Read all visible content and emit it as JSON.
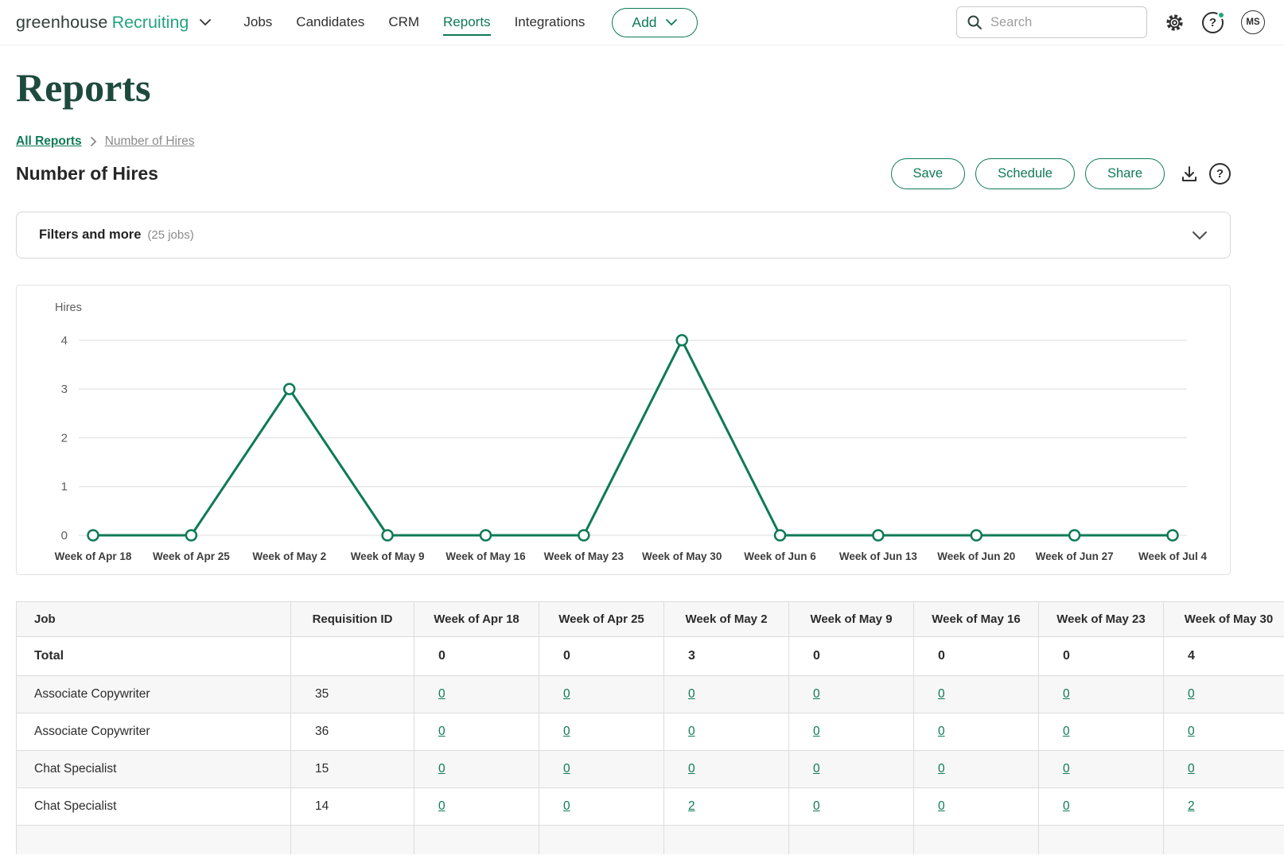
{
  "nav": {
    "logo_primary": "greenhouse",
    "logo_product": "Recruiting",
    "items": [
      {
        "label": "Jobs"
      },
      {
        "label": "Candidates"
      },
      {
        "label": "CRM"
      },
      {
        "label": "Reports"
      },
      {
        "label": "Integrations"
      }
    ],
    "active_item": "Reports",
    "add_button": "Add",
    "search_placeholder": "Search",
    "avatar_initials": "MS"
  },
  "page": {
    "title": "Reports",
    "breadcrumb": [
      {
        "label": "All Reports"
      },
      {
        "label": "Number of Hires"
      }
    ],
    "report_title": "Number of Hires",
    "actions": {
      "save": "Save",
      "schedule": "Schedule",
      "share": "Share"
    }
  },
  "filters": {
    "label": "Filters and more",
    "meta": "(25 jobs)"
  },
  "chart_data": {
    "type": "line",
    "title": "",
    "ylabel": "Hires",
    "xlabel": "",
    "categories": [
      "Week of Apr 18",
      "Week of Apr 25",
      "Week of May 2",
      "Week of May 9",
      "Week of May 16",
      "Week of May 23",
      "Week of May 30",
      "Week of Jun 6",
      "Week of Jun 13",
      "Week of Jun 20",
      "Week of Jun 27",
      "Week of Jul 4"
    ],
    "values": [
      0,
      0,
      3,
      0,
      0,
      0,
      4,
      0,
      0,
      0,
      0,
      0
    ],
    "yticks": [
      0,
      1,
      2,
      3,
      4
    ],
    "ylim": [
      0,
      4
    ],
    "grid": true,
    "legend": "none"
  },
  "table": {
    "columns": [
      "Job",
      "Requisition ID",
      "Week of Apr 18",
      "Week of Apr 25",
      "Week of May 2",
      "Week of May 9",
      "Week of May 16",
      "Week of May 23",
      "Week of May 30"
    ],
    "total_label": "Total",
    "total_values": [
      "0",
      "0",
      "3",
      "0",
      "0",
      "0",
      "4"
    ],
    "rows": [
      {
        "job": "Associate Copywriter",
        "req_id": "35",
        "values": [
          "0",
          "0",
          "0",
          "0",
          "0",
          "0",
          "0"
        ]
      },
      {
        "job": "Associate Copywriter",
        "req_id": "36",
        "values": [
          "0",
          "0",
          "0",
          "0",
          "0",
          "0",
          "0"
        ]
      },
      {
        "job": "Chat Specialist",
        "req_id": "15",
        "values": [
          "0",
          "0",
          "0",
          "0",
          "0",
          "0",
          "0"
        ]
      },
      {
        "job": "Chat Specialist",
        "req_id": "14",
        "values": [
          "0",
          "0",
          "2",
          "0",
          "0",
          "0",
          "2"
        ]
      }
    ]
  },
  "colors": {
    "brand_green": "#23a47f",
    "ui_green": "#0e7a56",
    "title_green": "#1e4a3e",
    "grid_gray": "#e7e7e7",
    "tick_gray": "#5d5d5d",
    "xlabel_gray": "#3d3d3d"
  }
}
